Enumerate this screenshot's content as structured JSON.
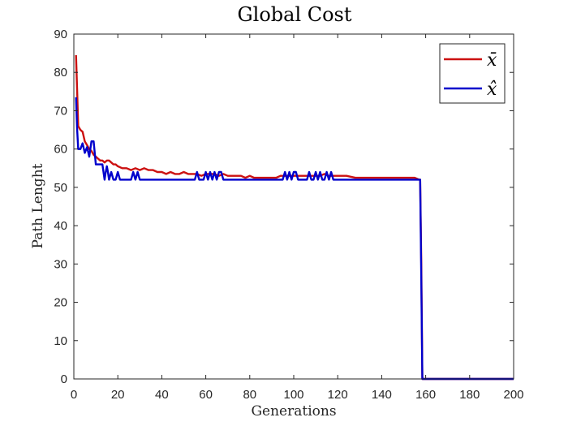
{
  "chart_data": {
    "type": "line",
    "title": "Global Cost",
    "xlabel": "Generations",
    "ylabel": "Path Lenght",
    "xlim": [
      0,
      200
    ],
    "ylim": [
      0,
      90
    ],
    "xticks": [
      0,
      20,
      40,
      60,
      80,
      100,
      120,
      140,
      160,
      180,
      200
    ],
    "yticks": [
      0,
      10,
      20,
      30,
      40,
      50,
      60,
      70,
      80,
      90
    ],
    "grid": false,
    "legend_position": "top-right",
    "series": [
      {
        "name": "x̄",
        "color": "#cc1111",
        "x": [
          1,
          1.5,
          2,
          3,
          4,
          5,
          6,
          7,
          8,
          9,
          10,
          11,
          12,
          13,
          14,
          15,
          16,
          17,
          18,
          19,
          20,
          22,
          24,
          26,
          28,
          30,
          32,
          34,
          36,
          38,
          40,
          42,
          44,
          46,
          48,
          50,
          52,
          54,
          56,
          58,
          60,
          62,
          64,
          66,
          68,
          70,
          72,
          74,
          76,
          78,
          80,
          82,
          84,
          86,
          88,
          90,
          92,
          94,
          96,
          98,
          100,
          102,
          104,
          106,
          108,
          110,
          112,
          114,
          116,
          118,
          120,
          124,
          128,
          132,
          136,
          140,
          144,
          148,
          152,
          155,
          157,
          157.5,
          158,
          158.5,
          160,
          200
        ],
        "y": [
          84.5,
          75,
          66,
          65,
          64.5,
          62,
          61,
          60,
          59.5,
          58.5,
          58,
          57.5,
          57,
          57,
          56.5,
          57,
          57,
          56.5,
          56,
          56,
          55.5,
          55,
          55,
          54.5,
          55,
          54.5,
          55,
          54.5,
          54.5,
          54,
          54,
          53.5,
          54,
          53.5,
          53.5,
          54,
          53.5,
          53.5,
          53.5,
          53,
          53.5,
          53.5,
          53.5,
          53,
          53.5,
          53,
          53,
          53,
          53,
          52.5,
          53,
          52.5,
          52.5,
          52.5,
          52.5,
          52.5,
          52.5,
          53,
          53,
          53,
          53,
          53,
          53,
          53,
          53,
          53,
          53,
          53.5,
          53,
          53,
          53,
          53,
          52.5,
          52.5,
          52.5,
          52.5,
          52.5,
          52.5,
          52.5,
          52.5,
          52,
          52,
          30,
          0,
          0,
          0
        ]
      },
      {
        "name": "x̂",
        "color": "#0000cc",
        "x": [
          1,
          1.5,
          2,
          3,
          4,
          5,
          6,
          7,
          8,
          9,
          10,
          11,
          12,
          13,
          14,
          14.5,
          15,
          15.5,
          16,
          17,
          18,
          19,
          20,
          21,
          22,
          26,
          27,
          28,
          29,
          30,
          31,
          32,
          55,
          56,
          57,
          58,
          59,
          60,
          61,
          62,
          63,
          64,
          65,
          66,
          67,
          68,
          95,
          96,
          97,
          98,
          99,
          100,
          101,
          102,
          103,
          106,
          107,
          108,
          109,
          110,
          111,
          112,
          113,
          114,
          115,
          116,
          117,
          118,
          157,
          157.5,
          158,
          158.5,
          160,
          200
        ],
        "y": [
          73.5,
          65,
          60,
          60,
          61.5,
          59,
          60.5,
          58,
          62,
          62,
          56,
          56,
          56,
          56,
          52,
          54,
          55.5,
          54,
          52,
          54,
          52,
          52,
          54,
          52,
          52,
          52,
          54,
          52,
          54,
          52,
          52,
          52,
          52,
          54,
          52,
          52,
          52,
          54,
          52,
          54,
          52,
          54,
          52,
          54,
          54,
          52,
          52,
          54,
          52,
          54,
          52,
          54,
          54,
          52,
          52,
          52,
          54,
          52,
          52,
          54,
          52,
          54,
          52,
          52,
          54,
          52,
          54,
          52,
          52,
          52,
          26,
          0,
          0,
          0
        ]
      }
    ]
  }
}
